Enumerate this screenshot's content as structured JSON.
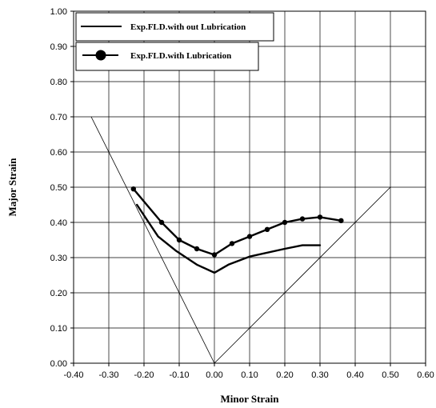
{
  "chart_data": {
    "type": "line",
    "xlabel": "Minor Strain",
    "ylabel": "Major Strain",
    "xlim": [
      -0.4,
      0.6
    ],
    "ylim": [
      0.0,
      1.0
    ],
    "x_ticks": [
      "-0.40",
      "-0.30",
      "-0.20",
      "-0.10",
      "0.00",
      "0.10",
      "0.20",
      "0.30",
      "0.40",
      "0.50",
      "0.60"
    ],
    "y_ticks": [
      "0.00",
      "0.10",
      "0.20",
      "0.30",
      "0.40",
      "0.50",
      "0.60",
      "0.70",
      "0.80",
      "0.90",
      "1.00"
    ],
    "grid": true,
    "legend_position": "top-left",
    "series": [
      {
        "name": "Exp.FLD.with out Lubrication",
        "marker": false,
        "x": [
          -0.22,
          -0.16,
          -0.11,
          -0.05,
          0.0,
          0.04,
          0.1,
          0.2,
          0.25,
          0.3
        ],
        "y": [
          0.45,
          0.36,
          0.32,
          0.28,
          0.257,
          0.28,
          0.303,
          0.325,
          0.335,
          0.335
        ]
      },
      {
        "name": "Exp.FLD.with Lubrication",
        "marker": true,
        "x": [
          -0.23,
          -0.15,
          -0.1,
          -0.05,
          0.0,
          0.05,
          0.1,
          0.15,
          0.2,
          0.25,
          0.3,
          0.36
        ],
        "y": [
          0.495,
          0.4,
          0.35,
          0.325,
          0.308,
          0.34,
          0.36,
          0.38,
          0.4,
          0.41,
          0.415,
          0.405
        ]
      }
    ],
    "reference_lines": [
      {
        "x": [
          -0.35,
          0.0
        ],
        "y": [
          0.7,
          0.0
        ]
      },
      {
        "x": [
          0.0,
          0.5
        ],
        "y": [
          0.0,
          0.5
        ]
      }
    ]
  }
}
